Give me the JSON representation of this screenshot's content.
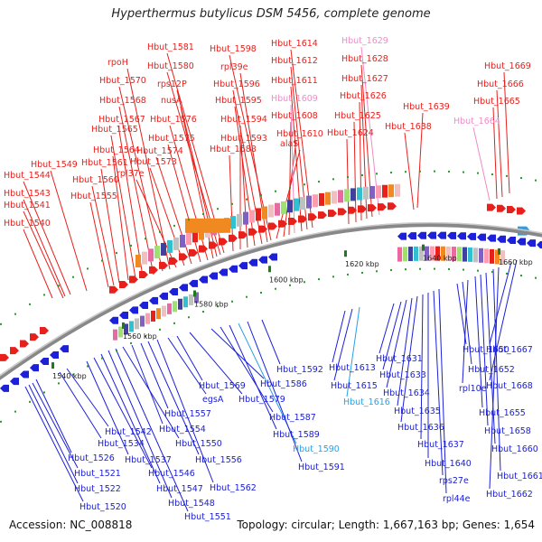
{
  "title": "Hyperthermus butylicus DSM 5456, complete genome",
  "footer": {
    "accession": "Accession: NC_008818",
    "topology": "Topology: circular; Length: 1,667,163 bp; Genes: 1,654"
  },
  "colors": {
    "forward": "#e8201c",
    "reverse": "#1c20d8",
    "rna_forward": "#f08cc8",
    "rna_reverse": "#2aa0e8",
    "backbone": "#777777"
  },
  "kbp_labels": [
    "1540 kbp",
    "1560 kbp",
    "1580 kbp",
    "1600 kbp",
    "1620 kbp",
    "1640 kbp",
    "1660 kbp"
  ],
  "top_labels": [
    {
      "text": "Hbut_1540",
      "c": "forward"
    },
    {
      "text": "Hbut_1541",
      "c": "forward"
    },
    {
      "text": "Hbut_1543",
      "c": "forward"
    },
    {
      "text": "Hbut_1544",
      "c": "forward"
    },
    {
      "text": "Hbut_1549",
      "c": "forward"
    },
    {
      "text": "Hbut_1555",
      "c": "forward"
    },
    {
      "text": "Hbut_1560",
      "c": "forward"
    },
    {
      "text": "Hbut_1561",
      "c": "forward"
    },
    {
      "text": "Hbut_1564",
      "c": "forward"
    },
    {
      "text": "Hbut_1565",
      "c": "forward"
    },
    {
      "text": "Hbut_1567",
      "c": "forward"
    },
    {
      "text": "Hbut_1568",
      "c": "forward"
    },
    {
      "text": "Hbut_1570",
      "c": "forward"
    },
    {
      "text": "rpoH",
      "c": "forward"
    },
    {
      "text": "rpl37e",
      "c": "forward"
    },
    {
      "text": "Hbut_1573",
      "c": "forward"
    },
    {
      "text": "Hbut_1574",
      "c": "forward"
    },
    {
      "text": "Hbut_1575",
      "c": "forward"
    },
    {
      "text": "Hbut_1576",
      "c": "forward"
    },
    {
      "text": "nusA",
      "c": "forward"
    },
    {
      "text": "rps12P",
      "c": "forward"
    },
    {
      "text": "Hbut_1580",
      "c": "forward"
    },
    {
      "text": "Hbut_1581",
      "c": "forward"
    },
    {
      "text": "Hbut_1588",
      "c": "forward"
    },
    {
      "text": "Hbut_1593",
      "c": "forward"
    },
    {
      "text": "Hbut_1594",
      "c": "forward"
    },
    {
      "text": "Hbut_1595",
      "c": "forward"
    },
    {
      "text": "Hbut_1596",
      "c": "forward"
    },
    {
      "text": "rpl39e",
      "c": "forward"
    },
    {
      "text": "Hbut_1598",
      "c": "forward"
    },
    {
      "text": "alaS",
      "c": "forward"
    },
    {
      "text": "Hbut_1610",
      "c": "forward"
    },
    {
      "text": "Hbut_1608",
      "c": "forward"
    },
    {
      "text": "Hbut_1609",
      "c": "rna_forward"
    },
    {
      "text": "Hbut_1611",
      "c": "forward"
    },
    {
      "text": "Hbut_1612",
      "c": "forward"
    },
    {
      "text": "Hbut_1614",
      "c": "forward"
    },
    {
      "text": "Hbut_1624",
      "c": "forward"
    },
    {
      "text": "Hbut_1625",
      "c": "forward"
    },
    {
      "text": "Hbut_1626",
      "c": "forward"
    },
    {
      "text": "Hbut_1627",
      "c": "forward"
    },
    {
      "text": "Hbut_1628",
      "c": "forward"
    },
    {
      "text": "Hbut_1629",
      "c": "rna_forward"
    },
    {
      "text": "Hbut_1638",
      "c": "forward"
    },
    {
      "text": "Hbut_1639",
      "c": "forward"
    },
    {
      "text": "Hbut_1664",
      "c": "rna_forward"
    },
    {
      "text": "Hbut_1665",
      "c": "forward"
    },
    {
      "text": "Hbut_1666",
      "c": "forward"
    },
    {
      "text": "Hbut_1669",
      "c": "forward"
    }
  ],
  "bottom_labels": [
    {
      "text": "Hbut_1520",
      "c": "reverse"
    },
    {
      "text": "Hbut_1522",
      "c": "reverse"
    },
    {
      "text": "Hbut_1521",
      "c": "reverse"
    },
    {
      "text": "Hbut_1526",
      "c": "reverse"
    },
    {
      "text": "Hbut_1534",
      "c": "reverse"
    },
    {
      "text": "Hbut_1542",
      "c": "reverse"
    },
    {
      "text": "Hbut_1537",
      "c": "reverse"
    },
    {
      "text": "Hbut_1546",
      "c": "reverse"
    },
    {
      "text": "Hbut_1547",
      "c": "reverse"
    },
    {
      "text": "Hbut_1548",
      "c": "reverse"
    },
    {
      "text": "Hbut_1551",
      "c": "reverse"
    },
    {
      "text": "Hbut_1550",
      "c": "reverse"
    },
    {
      "text": "Hbut_1554",
      "c": "reverse"
    },
    {
      "text": "Hbut_1557",
      "c": "reverse"
    },
    {
      "text": "Hbut_1556",
      "c": "reverse"
    },
    {
      "text": "Hbut_1562",
      "c": "reverse"
    },
    {
      "text": "egsA",
      "c": "reverse"
    },
    {
      "text": "Hbut_1569",
      "c": "reverse"
    },
    {
      "text": "Hbut_1579",
      "c": "reverse"
    },
    {
      "text": "Hbut_1586",
      "c": "reverse"
    },
    {
      "text": "Hbut_1587",
      "c": "reverse"
    },
    {
      "text": "Hbut_1589",
      "c": "reverse"
    },
    {
      "text": "Hbut_1590",
      "c": "rna_reverse"
    },
    {
      "text": "Hbut_1591",
      "c": "reverse"
    },
    {
      "text": "Hbut_1592",
      "c": "reverse"
    },
    {
      "text": "Hbut_1613",
      "c": "reverse"
    },
    {
      "text": "Hbut_1615",
      "c": "reverse"
    },
    {
      "text": "Hbut_1616",
      "c": "rna_reverse"
    },
    {
      "text": "Hbut_1631",
      "c": "reverse"
    },
    {
      "text": "Hbut_1633",
      "c": "reverse"
    },
    {
      "text": "Hbut_1634",
      "c": "reverse"
    },
    {
      "text": "Hbut_1635",
      "c": "reverse"
    },
    {
      "text": "Hbut_1636",
      "c": "reverse"
    },
    {
      "text": "Hbut_1637",
      "c": "reverse"
    },
    {
      "text": "Hbut_1640",
      "c": "reverse"
    },
    {
      "text": "rps27e",
      "c": "reverse"
    },
    {
      "text": "rpl44e",
      "c": "reverse"
    },
    {
      "text": "Hbut_1650",
      "c": "reverse"
    },
    {
      "text": "Hbut_1652",
      "c": "reverse"
    },
    {
      "text": "rpl10e",
      "c": "reverse"
    },
    {
      "text": "Hbut_1655",
      "c": "reverse"
    },
    {
      "text": "Hbut_1658",
      "c": "reverse"
    },
    {
      "text": "Hbut_1660",
      "c": "reverse"
    },
    {
      "text": "Hbut_1661",
      "c": "reverse"
    },
    {
      "text": "Hbut_1662",
      "c": "reverse"
    },
    {
      "text": "Hbut_1667",
      "c": "reverse"
    },
    {
      "text": "Hbut_1668",
      "c": "reverse"
    }
  ]
}
